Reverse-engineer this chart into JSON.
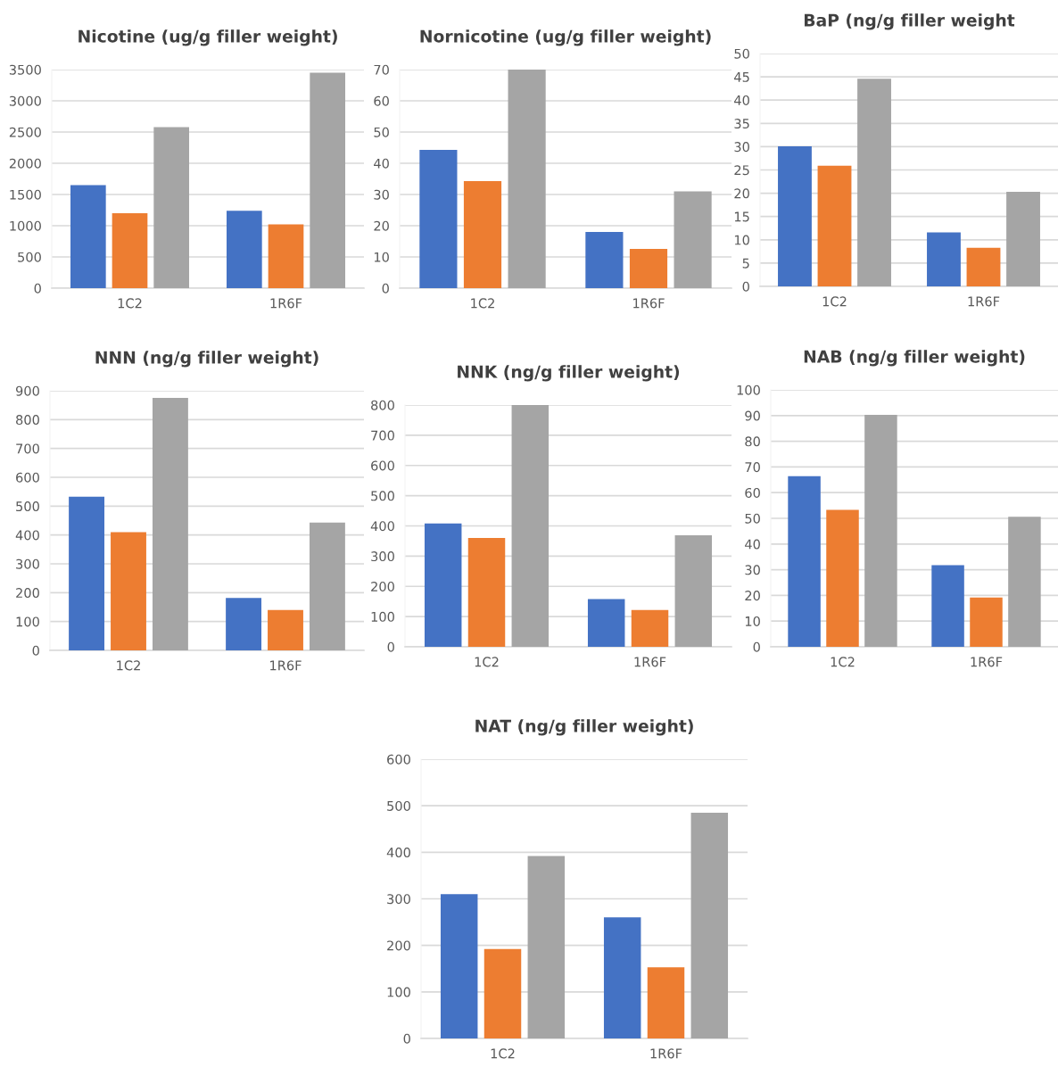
{
  "chart_data": [
    {
      "type": "bar",
      "title": "Nicotine (ug/g filler weight)",
      "categories": [
        "1C2",
        "1R6F"
      ],
      "ylim": [
        0,
        3500
      ],
      "yticks": [
        0,
        500,
        1000,
        1500,
        2000,
        2500,
        3000,
        3500
      ],
      "grid": "y",
      "series": [
        {
          "color": "#4472c4",
          "values": [
            1650,
            1240
          ]
        },
        {
          "color": "#ed7d31",
          "values": [
            1200,
            1020
          ]
        },
        {
          "color": "#a5a5a5",
          "values": [
            2580,
            3450
          ]
        }
      ]
    },
    {
      "type": "bar",
      "title": "Nornicotine (ug/g filler weight)",
      "categories": [
        "1C2",
        "1R6F"
      ],
      "ylim": [
        0,
        70
      ],
      "yticks": [
        0,
        10,
        20,
        30,
        40,
        50,
        60,
        70
      ],
      "grid": "y",
      "series": [
        {
          "color": "#4472c4",
          "values": [
            44.3,
            18
          ]
        },
        {
          "color": "#ed7d31",
          "values": [
            34.3,
            12.6
          ]
        },
        {
          "color": "#a5a5a5",
          "values": [
            70,
            31
          ]
        }
      ]
    },
    {
      "type": "bar",
      "title": "BaP (ng/g filler weight",
      "categories": [
        "1C2",
        "1R6F"
      ],
      "ylim": [
        0,
        50
      ],
      "yticks": [
        0,
        5,
        10,
        15,
        20,
        25,
        30,
        35,
        40,
        45,
        50
      ],
      "grid": "y",
      "series": [
        {
          "color": "#4472c4",
          "values": [
            30.1,
            11.6
          ]
        },
        {
          "color": "#ed7d31",
          "values": [
            25.9,
            8.3
          ]
        },
        {
          "color": "#a5a5a5",
          "values": [
            44.6,
            20.3
          ]
        }
      ]
    },
    {
      "type": "bar",
      "title": "NNN (ng/g filler weight)",
      "categories": [
        "1C2",
        "1R6F"
      ],
      "ylim": [
        0,
        900
      ],
      "yticks": [
        0,
        100,
        200,
        300,
        400,
        500,
        600,
        700,
        800,
        900
      ],
      "grid": "y",
      "series": [
        {
          "color": "#4472c4",
          "values": [
            533,
            182
          ]
        },
        {
          "color": "#ed7d31",
          "values": [
            410,
            140
          ]
        },
        {
          "color": "#a5a5a5",
          "values": [
            875,
            443
          ]
        }
      ]
    },
    {
      "type": "bar",
      "title": "NNK (ng/g filler weight)",
      "categories": [
        "1C2",
        "1R6F"
      ],
      "ylim": [
        0,
        800
      ],
      "yticks": [
        0,
        100,
        200,
        300,
        400,
        500,
        600,
        700,
        800
      ],
      "grid": "y",
      "series": [
        {
          "color": "#4472c4",
          "values": [
            408,
            158
          ]
        },
        {
          "color": "#ed7d31",
          "values": [
            360,
            122
          ]
        },
        {
          "color": "#a5a5a5",
          "values": [
            800,
            369
          ]
        }
      ]
    },
    {
      "type": "bar",
      "title": "NAB (ng/g filler weight)",
      "categories": [
        "1C2",
        "1R6F"
      ],
      "ylim": [
        0,
        100
      ],
      "yticks": [
        0,
        10,
        20,
        30,
        40,
        50,
        60,
        70,
        80,
        90,
        100
      ],
      "grid": "y",
      "series": [
        {
          "color": "#4472c4",
          "values": [
            66.4,
            31.8
          ]
        },
        {
          "color": "#ed7d31",
          "values": [
            53.3,
            19.2
          ]
        },
        {
          "color": "#a5a5a5",
          "values": [
            90.3,
            50.6
          ]
        }
      ]
    },
    {
      "type": "bar",
      "title": "NAT (ng/g filler weight)",
      "categories": [
        "1C2",
        "1R6F"
      ],
      "ylim": [
        0,
        600
      ],
      "yticks": [
        0,
        100,
        200,
        300,
        400,
        500,
        600
      ],
      "grid": "y",
      "series": [
        {
          "color": "#4472c4",
          "values": [
            310,
            260
          ]
        },
        {
          "color": "#ed7d31",
          "values": [
            192,
            153
          ]
        },
        {
          "color": "#a5a5a5",
          "values": [
            392,
            485
          ]
        }
      ]
    }
  ]
}
